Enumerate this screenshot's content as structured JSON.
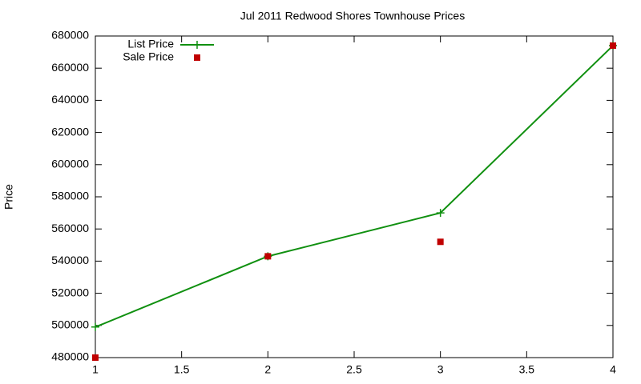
{
  "chart_data": {
    "type": "line",
    "title": "Jul 2011 Redwood Shores Townhouse Prices",
    "ylabel": "Price",
    "x": [
      1,
      2,
      3,
      4
    ],
    "series": [
      {
        "name": "List Price",
        "color": "#109010",
        "style": "linespoints",
        "values": [
          499000,
          543000,
          570000,
          674000
        ]
      },
      {
        "name": "Sale Price",
        "color": "#c00000",
        "style": "points",
        "values": [
          480000,
          543000,
          552000,
          674000
        ]
      }
    ],
    "xlim": [
      1,
      4
    ],
    "xticks": [
      1,
      1.5,
      2,
      2.5,
      3,
      3.5,
      4
    ],
    "ylim": [
      480000,
      680000
    ],
    "yticks": [
      480000,
      500000,
      520000,
      540000,
      560000,
      580000,
      600000,
      620000,
      640000,
      660000,
      680000
    ],
    "grid": false,
    "legend": "upper left"
  }
}
